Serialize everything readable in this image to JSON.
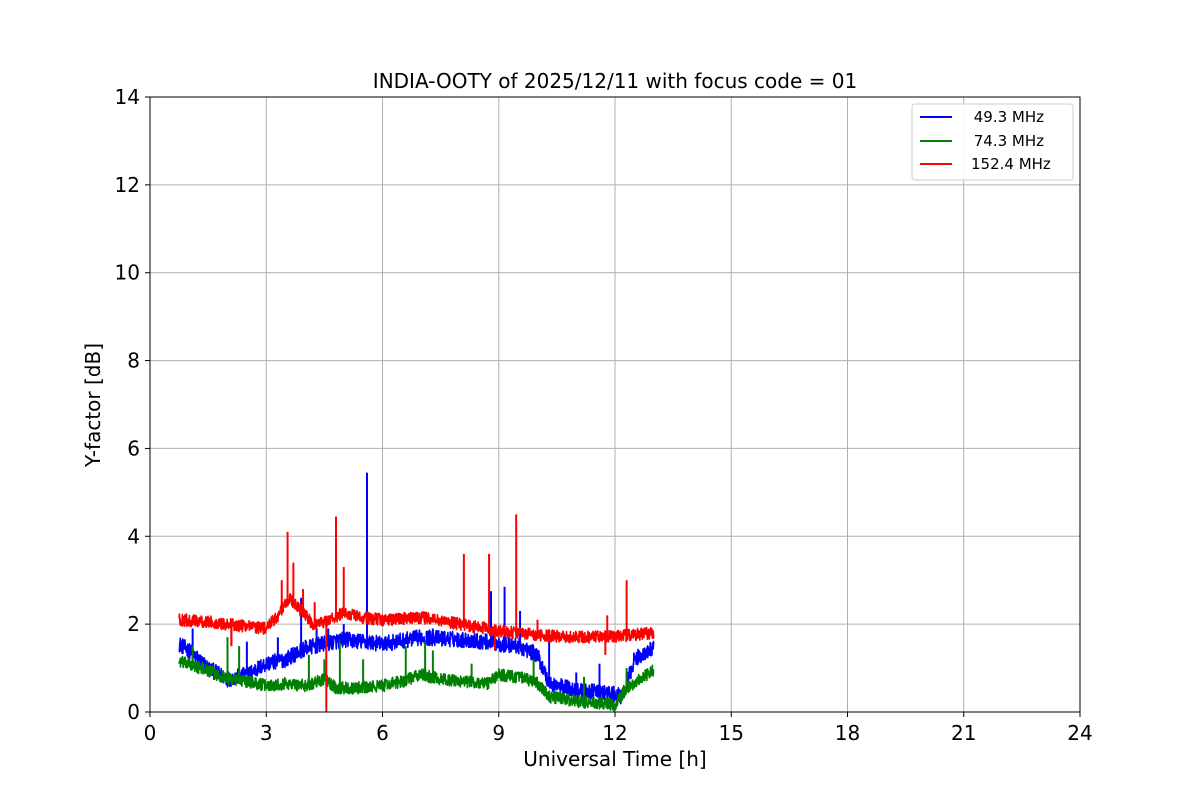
{
  "chart_data": {
    "type": "line",
    "title": "INDIA-OOTY of 2025/12/11 with focus code = 01",
    "xlabel": "Universal Time [h]",
    "ylabel": "Y-factor [dB]",
    "xlim": [
      0,
      24
    ],
    "ylim": [
      0,
      14
    ],
    "xticks": [
      0,
      3,
      6,
      9,
      12,
      15,
      18,
      21,
      24
    ],
    "yticks": [
      0,
      2,
      4,
      6,
      8,
      10,
      12,
      14
    ],
    "grid": true,
    "legend_position": "top-right",
    "series": [
      {
        "name": "49.3 MHz",
        "legend_label": " 49.3 MHz",
        "color": "#0000ff",
        "noise": 0.18,
        "points": [
          [
            0.75,
            1.55
          ],
          [
            1.0,
            1.4
          ],
          [
            1.5,
            1.0
          ],
          [
            2.0,
            0.75
          ],
          [
            2.5,
            0.85
          ],
          [
            3.0,
            1.1
          ],
          [
            3.5,
            1.2
          ],
          [
            4.0,
            1.45
          ],
          [
            4.5,
            1.55
          ],
          [
            5.0,
            1.65
          ],
          [
            6.0,
            1.55
          ],
          [
            7.0,
            1.7
          ],
          [
            8.0,
            1.65
          ],
          [
            8.7,
            1.6
          ],
          [
            9.0,
            1.55
          ],
          [
            9.5,
            1.5
          ],
          [
            10.0,
            1.3
          ],
          [
            10.3,
            0.65
          ],
          [
            11.0,
            0.5
          ],
          [
            11.5,
            0.45
          ],
          [
            12.0,
            0.4
          ],
          [
            12.2,
            0.35
          ],
          [
            12.5,
            1.2
          ],
          [
            13.0,
            1.45
          ]
        ],
        "spikes": [
          [
            1.1,
            1.9
          ],
          [
            2.0,
            1.7
          ],
          [
            2.5,
            1.6
          ],
          [
            3.3,
            1.7
          ],
          [
            3.9,
            2.6
          ],
          [
            4.3,
            1.9
          ],
          [
            4.6,
            1.9
          ],
          [
            5.0,
            2.0
          ],
          [
            5.6,
            5.45
          ],
          [
            6.4,
            1.7
          ],
          [
            7.3,
            1.9
          ],
          [
            8.8,
            2.75
          ],
          [
            9.15,
            2.85
          ],
          [
            9.55,
            2.3
          ],
          [
            10.3,
            1.65
          ],
          [
            11.0,
            0.9
          ],
          [
            11.6,
            1.1
          ],
          [
            12.3,
            0.9
          ]
        ]
      },
      {
        "name": "74.3 MHz",
        "legend_label": " 74.3 MHz",
        "color": "#008000",
        "noise": 0.14,
        "points": [
          [
            0.75,
            1.15
          ],
          [
            1.5,
            0.95
          ],
          [
            2.0,
            0.75
          ],
          [
            2.5,
            0.7
          ],
          [
            3.0,
            0.6
          ],
          [
            3.5,
            0.65
          ],
          [
            4.0,
            0.6
          ],
          [
            4.5,
            0.75
          ],
          [
            4.8,
            0.55
          ],
          [
            5.5,
            0.55
          ],
          [
            6.0,
            0.6
          ],
          [
            6.5,
            0.7
          ],
          [
            7.0,
            0.85
          ],
          [
            7.5,
            0.75
          ],
          [
            8.0,
            0.7
          ],
          [
            8.7,
            0.65
          ],
          [
            9.0,
            0.85
          ],
          [
            9.5,
            0.8
          ],
          [
            10.0,
            0.65
          ],
          [
            10.3,
            0.35
          ],
          [
            11.0,
            0.25
          ],
          [
            11.5,
            0.2
          ],
          [
            12.0,
            0.15
          ],
          [
            12.3,
            0.55
          ],
          [
            13.0,
            0.95
          ]
        ],
        "spikes": [
          [
            1.1,
            1.5
          ],
          [
            2.0,
            1.7
          ],
          [
            2.3,
            1.5
          ],
          [
            4.1,
            1.3
          ],
          [
            4.5,
            1.2
          ],
          [
            4.9,
            1.6
          ],
          [
            5.5,
            1.2
          ],
          [
            6.6,
            1.5
          ],
          [
            7.1,
            1.6
          ],
          [
            7.3,
            1.4
          ],
          [
            8.3,
            1.1
          ],
          [
            9.9,
            1.2
          ],
          [
            11.2,
            0.8
          ],
          [
            12.3,
            1.0
          ]
        ]
      },
      {
        "name": "152.4 MHz",
        "legend_label": "152.4 MHz",
        "color": "#ff0000",
        "noise": 0.14,
        "points": [
          [
            0.75,
            2.1
          ],
          [
            1.5,
            2.05
          ],
          [
            2.5,
            1.95
          ],
          [
            3.0,
            1.9
          ],
          [
            3.3,
            2.2
          ],
          [
            3.6,
            2.6
          ],
          [
            3.9,
            2.3
          ],
          [
            4.2,
            2.0
          ],
          [
            4.5,
            2.05
          ],
          [
            5.0,
            2.25
          ],
          [
            5.5,
            2.15
          ],
          [
            6.0,
            2.1
          ],
          [
            7.0,
            2.15
          ],
          [
            8.0,
            2.0
          ],
          [
            9.0,
            1.85
          ],
          [
            10.0,
            1.75
          ],
          [
            11.0,
            1.7
          ],
          [
            12.0,
            1.72
          ],
          [
            13.0,
            1.8
          ]
        ],
        "spikes": [
          [
            2.1,
            1.5
          ],
          [
            3.4,
            3.0
          ],
          [
            3.55,
            4.1
          ],
          [
            3.7,
            3.4
          ],
          [
            3.95,
            2.8
          ],
          [
            4.25,
            2.5
          ],
          [
            4.8,
            4.45
          ],
          [
            5.0,
            3.3
          ],
          [
            8.1,
            3.6
          ],
          [
            8.75,
            3.6
          ],
          [
            9.45,
            4.5
          ],
          [
            10.0,
            2.1
          ],
          [
            11.8,
            2.2
          ],
          [
            12.3,
            3.0
          ]
        ],
        "dips": [
          [
            2.1,
            1.5
          ],
          [
            4.55,
            0.0
          ],
          [
            8.9,
            1.4
          ],
          [
            11.75,
            1.3
          ]
        ]
      }
    ]
  }
}
